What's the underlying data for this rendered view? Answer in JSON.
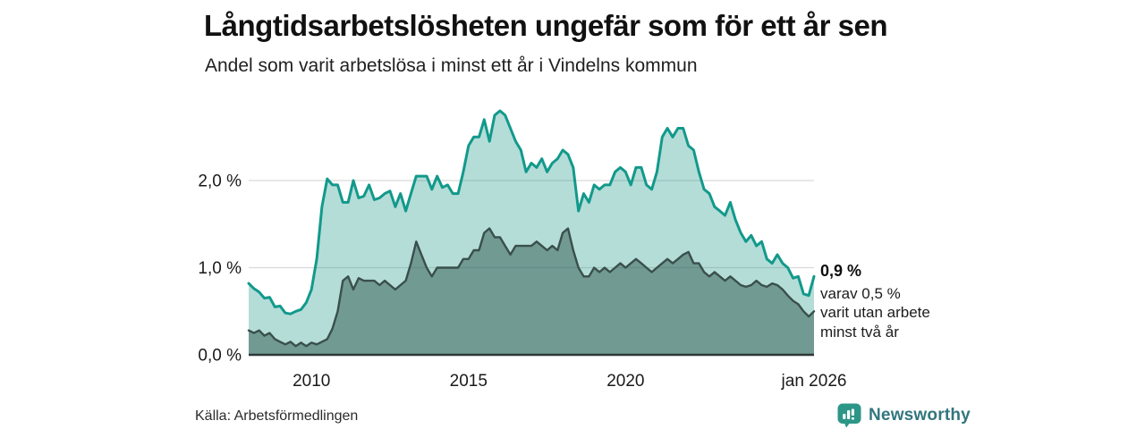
{
  "header": {
    "title": "Långtidsarbetslösheten ungefär som för ett år sen",
    "subtitle": "Andel som varit arbetslösa i minst ett år i Vindelns kommun"
  },
  "annotation": {
    "value": "0,9 %",
    "lines": [
      "varav 0,5 %",
      "varit utan arbete",
      "minst två år"
    ]
  },
  "source": {
    "label": "Källa: Arbetsförmedlingen"
  },
  "branding": {
    "name": "Newsworthy",
    "icon": "newsworthy-bar-chart-bubble-icon",
    "text_color": "#33767D",
    "icon_color": "#2C9687"
  },
  "colors": {
    "line_one_year": "#12998B",
    "fill_one_year": "rgba(26,153,138,0.33)",
    "line_two_year": "#3A4F4B",
    "fill_two_year": "rgba(52,92,85,0.52)",
    "gridline": "#d9d9d9",
    "baseline": "#2e3836",
    "axis_text": "#1a1a1a"
  },
  "chart_data": {
    "type": "area",
    "title": "Långtidsarbetslösheten ungefär som för ett år sen",
    "subtitle": "Andel som varit arbetslösa i minst ett år i Vindelns kommun",
    "x_start": 2008.0,
    "x_end": 2026.0,
    "x_step_years": 0.1667,
    "ylim": [
      0,
      2.95
    ],
    "grid": "horizontal",
    "legend": "none",
    "y_ticks": [
      {
        "v": 0,
        "label": "0,0 %"
      },
      {
        "v": 1,
        "label": "1,0 %"
      },
      {
        "v": 2,
        "label": "2,0 %"
      }
    ],
    "x_ticks": [
      {
        "t": 2010,
        "label": "2010"
      },
      {
        "t": 2015,
        "label": "2015"
      },
      {
        "t": 2020,
        "label": "2020"
      },
      {
        "t": 2026,
        "label": "jan 2026"
      }
    ],
    "end_values": {
      "one_year": "0,9 %",
      "two_year": "0,5 %"
    },
    "series": [
      {
        "name": "Arbetslösa minst ett år",
        "values": [
          0.82,
          0.76,
          0.72,
          0.65,
          0.66,
          0.55,
          0.56,
          0.48,
          0.47,
          0.5,
          0.52,
          0.6,
          0.75,
          1.1,
          1.7,
          2.02,
          1.95,
          1.95,
          1.75,
          1.75,
          2.0,
          1.8,
          1.82,
          1.95,
          1.78,
          1.8,
          1.85,
          1.88,
          1.7,
          1.85,
          1.65,
          1.85,
          2.05,
          2.05,
          2.05,
          1.9,
          2.05,
          1.92,
          1.95,
          1.85,
          1.85,
          2.1,
          2.4,
          2.5,
          2.5,
          2.7,
          2.45,
          2.75,
          2.8,
          2.75,
          2.6,
          2.45,
          2.35,
          2.1,
          2.2,
          2.15,
          2.25,
          2.1,
          2.2,
          2.25,
          2.35,
          2.3,
          2.15,
          1.65,
          1.85,
          1.75,
          1.95,
          1.9,
          1.95,
          1.95,
          2.1,
          2.15,
          2.1,
          1.95,
          2.15,
          2.15,
          1.95,
          1.9,
          2.1,
          2.5,
          2.6,
          2.5,
          2.6,
          2.6,
          2.4,
          2.35,
          2.1,
          1.9,
          1.85,
          1.7,
          1.65,
          1.6,
          1.75,
          1.55,
          1.4,
          1.3,
          1.37,
          1.25,
          1.3,
          1.1,
          1.05,
          1.15,
          1.05,
          1.0,
          0.88,
          0.9,
          0.7,
          0.68,
          0.9
        ]
      },
      {
        "name": "Arbetslösa minst två år",
        "values": [
          0.28,
          0.25,
          0.28,
          0.22,
          0.25,
          0.18,
          0.15,
          0.12,
          0.15,
          0.1,
          0.14,
          0.1,
          0.14,
          0.12,
          0.15,
          0.18,
          0.3,
          0.5,
          0.85,
          0.9,
          0.75,
          0.88,
          0.85,
          0.85,
          0.85,
          0.8,
          0.85,
          0.8,
          0.75,
          0.8,
          0.85,
          1.05,
          1.3,
          1.15,
          1.0,
          0.9,
          1.0,
          1.0,
          1.0,
          1.0,
          1.0,
          1.1,
          1.1,
          1.2,
          1.2,
          1.4,
          1.45,
          1.35,
          1.35,
          1.25,
          1.15,
          1.25,
          1.25,
          1.25,
          1.25,
          1.3,
          1.25,
          1.2,
          1.25,
          1.2,
          1.4,
          1.45,
          1.2,
          1.0,
          0.9,
          0.9,
          1.0,
          0.95,
          1.0,
          0.95,
          1.0,
          1.05,
          1.0,
          1.05,
          1.1,
          1.05,
          1.0,
          0.95,
          1.0,
          1.05,
          1.1,
          1.05,
          1.1,
          1.15,
          1.18,
          1.05,
          1.05,
          0.95,
          0.9,
          0.95,
          0.9,
          0.85,
          0.9,
          0.85,
          0.8,
          0.78,
          0.8,
          0.85,
          0.8,
          0.78,
          0.82,
          0.8,
          0.75,
          0.68,
          0.62,
          0.58,
          0.5,
          0.44,
          0.5
        ]
      }
    ]
  }
}
